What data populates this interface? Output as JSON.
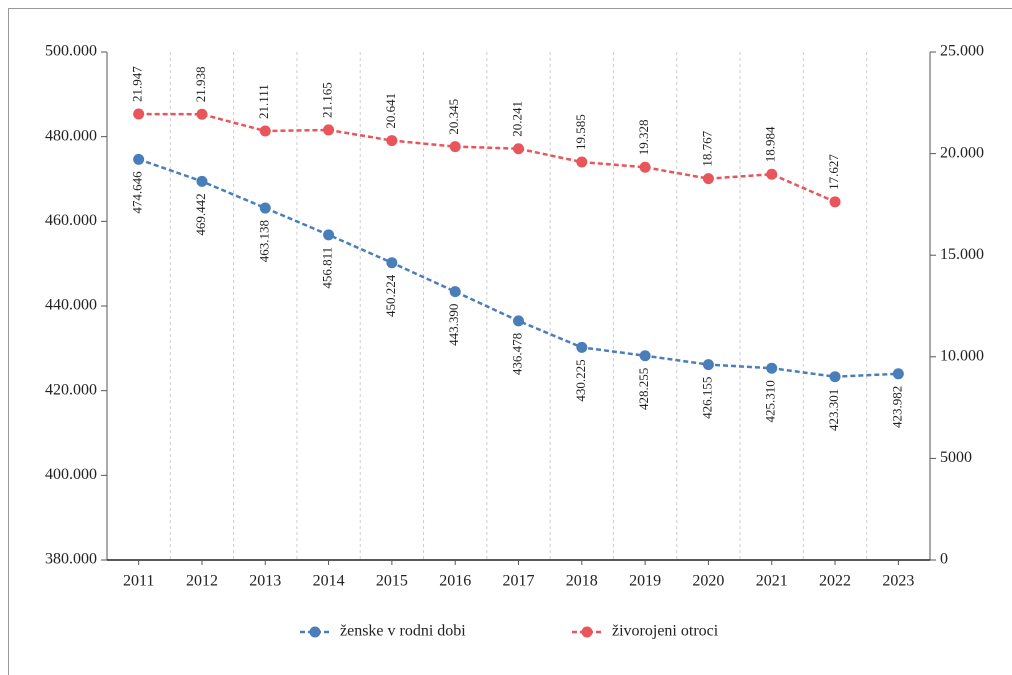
{
  "chart_data": {
    "type": "line",
    "categories": [
      "2011",
      "2012",
      "2013",
      "2014",
      "2015",
      "2016",
      "2017",
      "2018",
      "2019",
      "2020",
      "2021",
      "2022",
      "2023"
    ],
    "series": [
      {
        "name": "ženske v rodni dobi",
        "color": "#4a7ebb",
        "values": [
          474646,
          469442,
          463138,
          456811,
          450224,
          443390,
          436478,
          430225,
          428255,
          426155,
          425310,
          423301,
          423982
        ],
        "value_labels": [
          "474.646",
          "469.442",
          "463.138",
          "456.811",
          "450.224",
          "443.390",
          "436.478",
          "430.225",
          "428.255",
          "426.155",
          "425.310",
          "423.301",
          "423.982"
        ]
      },
      {
        "name": "živorojeni otroci",
        "color": "#e8555a",
        "axis": "y2",
        "values": [
          21947,
          21938,
          21111,
          21165,
          20641,
          20345,
          20241,
          19585,
          19328,
          18767,
          18984,
          17627,
          null
        ],
        "value_labels": [
          "21.947",
          "21.938",
          "21.111",
          "21.165",
          "20.641",
          "20.345",
          "20.241",
          "19.585",
          "19.328",
          "18.767",
          "18.984",
          "17.627",
          null
        ]
      }
    ],
    "ylim": [
      380000,
      500000
    ],
    "yticks": [
      {
        "value": 380000,
        "label": "380.000"
      },
      {
        "value": 400000,
        "label": "400.000"
      },
      {
        "value": 420000,
        "label": "420.000"
      },
      {
        "value": 440000,
        "label": "440.000"
      },
      {
        "value": 460000,
        "label": "460.000"
      },
      {
        "value": 480000,
        "label": "480.000"
      },
      {
        "value": 500000,
        "label": "500.000"
      }
    ],
    "y2lim": [
      0,
      25000
    ],
    "y2ticks": [
      0,
      5000,
      {
        "value": 10000,
        "label": "10.000"
      },
      {
        "value": 15000,
        "label": "15.000"
      },
      {
        "value": 20000,
        "label": "20.000"
      },
      {
        "value": 25000,
        "label": "25.000"
      }
    ],
    "grid": true,
    "legend": "bottom"
  }
}
